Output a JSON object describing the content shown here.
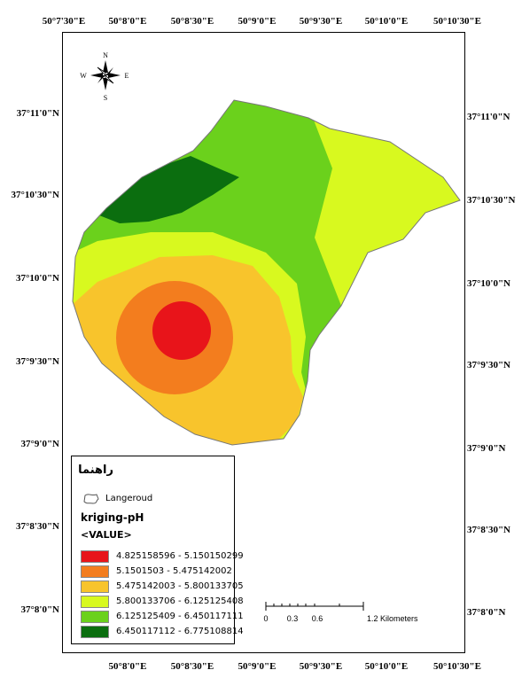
{
  "graticule": {
    "top": [
      "50°7'30\"E",
      "50°8'0\"E",
      "50°8'30\"E",
      "50°9'0\"E",
      "50°9'30\"E",
      "50°10'0\"E",
      "50°10'30\"E"
    ],
    "bottom": [
      "50°8'0\"E",
      "50°8'30\"E",
      "50°9'0\"E",
      "50°9'30\"E",
      "50°10'0\"E",
      "50°10'30\"E"
    ],
    "left": [
      "37°11'0\"N",
      "37°10'30\"N",
      "37°10'0\"N",
      "37°9'30\"N",
      "37°9'0\"N",
      "37°8'30\"N",
      "37°8'0\"N"
    ],
    "right": [
      "37°11'0\"N",
      "37°10'30\"N",
      "37°10'0\"N",
      "37°9'30\"N",
      "37°9'0\"N",
      "37°8'30\"N",
      "37°8'0\"N"
    ]
  },
  "north_arrow": {
    "n": "N",
    "s": "S",
    "e": "E",
    "w": "W"
  },
  "legend": {
    "title": "راهنما",
    "layer_name": "Langeroud",
    "field_name": "kriging-pH",
    "value_label": "<VALUE>",
    "classes": [
      {
        "label": "4.825158596 - 5.150150299",
        "color": "#e8141a"
      },
      {
        "label": "5.1501503 - 5.475142002",
        "color": "#f37d1e"
      },
      {
        "label": "5.475142003 - 5.800133705",
        "color": "#f8c42c"
      },
      {
        "label": "5.800133706 - 6.125125408",
        "color": "#d8f91f"
      },
      {
        "label": "6.125125409 - 6.450117111",
        "color": "#6bd11c"
      },
      {
        "label": "6.450117112 - 6.775108814",
        "color": "#0b6e0f"
      }
    ]
  },
  "scalebar": {
    "ticks": [
      "0",
      "0.3",
      "0.6"
    ],
    "end_label": "1.2 Kilometers"
  }
}
